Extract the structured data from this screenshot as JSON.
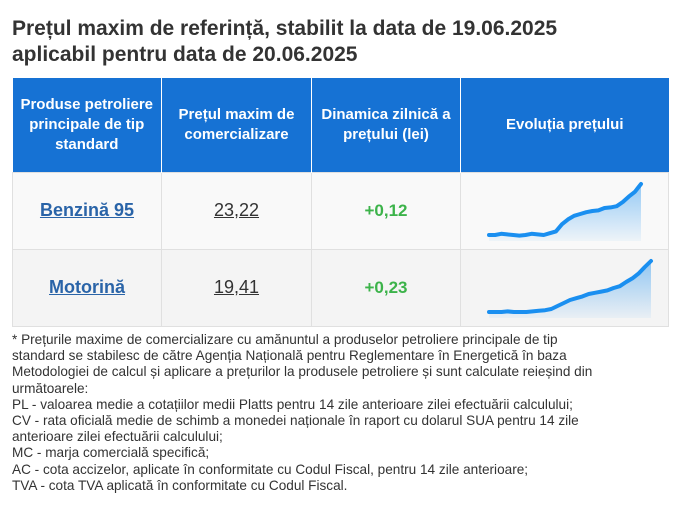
{
  "title": {
    "line1": "Prețul maxim de referință, stabilit la data de 19.06.2025",
    "line2": "aplicabil pentru data de 20.06.2025"
  },
  "table": {
    "headers": [
      "Produse petroliere principale de tip standard",
      "Prețul maxim de comercializare",
      "Dinamica zilnică a prețului (lei)",
      "Evoluția prețului"
    ],
    "rows": [
      {
        "product": "Benzină 95",
        "price": "23,22",
        "delta": "+0,12"
      },
      {
        "product": "Motorină",
        "price": "19,41",
        "delta": "+0,23"
      }
    ]
  },
  "colors": {
    "header_bg": "#1672d4",
    "link": "#2a64a8",
    "positive": "#3cb34a",
    "sparkline": "#1a8ff0"
  },
  "chart_data": [
    {
      "type": "area",
      "series": [
        {
          "values": [
            0.1,
            0.1,
            0.12,
            0.11,
            0.1,
            0.09,
            0.1,
            0.12,
            0.11,
            0.1,
            0.13,
            0.16,
            0.28,
            0.36,
            0.42,
            0.45,
            0.48,
            0.5,
            0.51,
            0.55,
            0.56,
            0.58,
            0.65,
            0.74,
            0.82,
            0.95
          ]
        }
      ]
    },
    {
      "type": "area",
      "series": [
        {
          "values": [
            0.1,
            0.1,
            0.1,
            0.11,
            0.1,
            0.1,
            0.1,
            0.11,
            0.12,
            0.13,
            0.15,
            0.2,
            0.25,
            0.3,
            0.33,
            0.36,
            0.4,
            0.42,
            0.44,
            0.46,
            0.5,
            0.53,
            0.6,
            0.66,
            0.74,
            0.85,
            0.95
          ]
        }
      ]
    }
  ],
  "note": {
    "lines": [
      "* Prețurile maxime de comercializare cu amănuntul a produselor petroliere principale de tip",
      "standard se stabilesc de către Agenția Națională pentru Reglementare în Energetică în baza",
      "Metodologiei de calcul și aplicare a prețurilor la produsele petroliere și sunt calculate reieșind din",
      "următoarele:",
      "PL - valoarea medie a cotațiilor medii Platts pentru 14 zile anterioare zilei efectuării calculului;",
      "CV - rata oficială medie de schimb a monedei naționale în raport cu dolarul SUA pentru 14 zile",
      "anterioare zilei efectuării calculului;",
      "MC - marja comercială specifică;",
      "AC - cota accizelor, aplicate în conformitate cu Codul Fiscal, pentru 14 zile anterioare;",
      "TVA - cota TVA aplicată în conformitate cu Codul Fiscal."
    ]
  }
}
